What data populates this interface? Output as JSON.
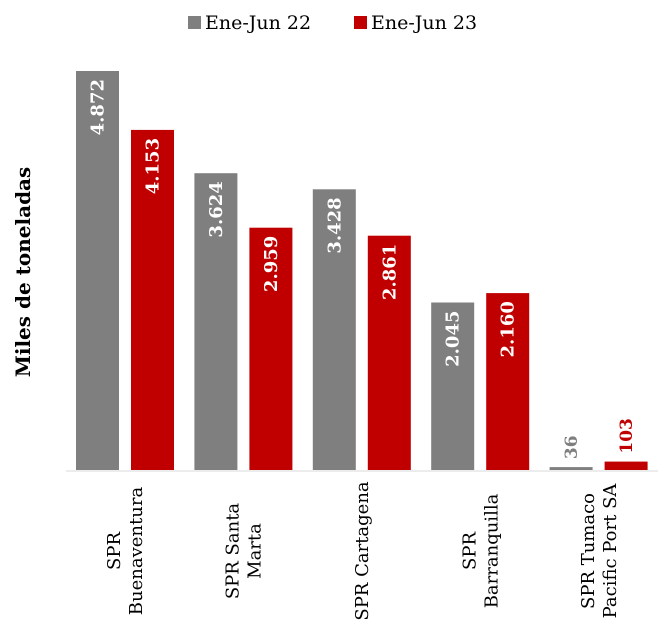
{
  "chart_data": {
    "type": "bar",
    "ylabel": "Miles de toneladas",
    "categories": [
      [
        "SPR",
        "Buenaventura"
      ],
      [
        "SPR Santa",
        "Marta"
      ],
      [
        "SPR Cartagena"
      ],
      [
        "SPR",
        "Barranquilla"
      ],
      [
        "SPR Tumaco",
        "Pacific Port SA"
      ]
    ],
    "series": [
      {
        "name": "Ene-Jun 22",
        "color": "#7f7f7f",
        "values": [
          4872,
          3624,
          3428,
          2045,
          36
        ],
        "labels": [
          "4.872",
          "3.624",
          "3.428",
          "2.045",
          "36"
        ]
      },
      {
        "name": "Ene-Jun 23",
        "color": "#c00000",
        "values": [
          4153,
          2959,
          2861,
          2160,
          103
        ],
        "labels": [
          "4.153",
          "2.959",
          "2.861",
          "2.160",
          "103"
        ]
      }
    ],
    "ylim": [
      0,
      4872
    ],
    "grid": false,
    "legend": "top-center"
  }
}
